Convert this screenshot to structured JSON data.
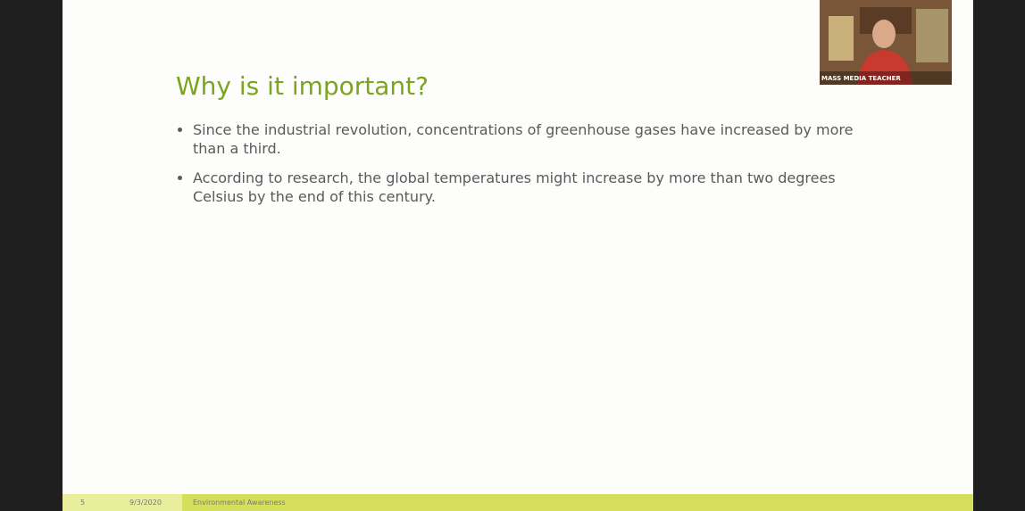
{
  "slide": {
    "title": "Why is it important?",
    "bullets": [
      "Since the industrial revolution, concentrations of greenhouse gases have increased by more than a third.",
      "According to research, the global temperatures might increase by more than two degrees Celsius by the end of this century."
    ],
    "footer": {
      "page": "5",
      "date": "9/3/2020",
      "text": "Environmental Awareness"
    }
  },
  "webcam": {
    "label": "MASS MEDIA TEACHER"
  }
}
